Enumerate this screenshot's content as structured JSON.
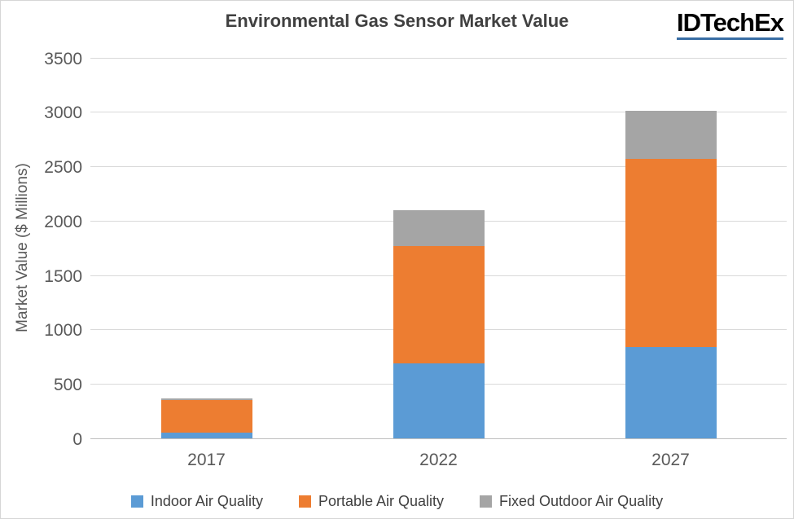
{
  "header": {
    "logo_text": "IDTechEx",
    "logo_underline_color": "#3a6ea5"
  },
  "chart_data": {
    "type": "bar",
    "stacked": true,
    "title": "Environmental Gas Sensor Market Value",
    "ylabel": "Market Value ($ Millions)",
    "xlabel": "",
    "categories": [
      "2017",
      "2022",
      "2027"
    ],
    "series": [
      {
        "name": "Indoor Air Quality",
        "color": "#5B9BD5",
        "values": [
          50,
          690,
          840
        ]
      },
      {
        "name": "Portable Air Quality",
        "color": "#ED7D31",
        "values": [
          300,
          1080,
          1730
        ]
      },
      {
        "name": "Fixed Outdoor Air Quality",
        "color": "#A5A5A5",
        "values": [
          20,
          330,
          440
        ]
      }
    ],
    "ylim": [
      0,
      3500
    ],
    "yticks": [
      0,
      500,
      1000,
      1500,
      2000,
      2500,
      3000,
      3500
    ],
    "grid": true,
    "legend_position": "bottom",
    "colors": {
      "title": "#404040",
      "axis_labels": "#595959",
      "gridline": "#d9d9d9",
      "baseline": "#bfbfbf"
    }
  }
}
